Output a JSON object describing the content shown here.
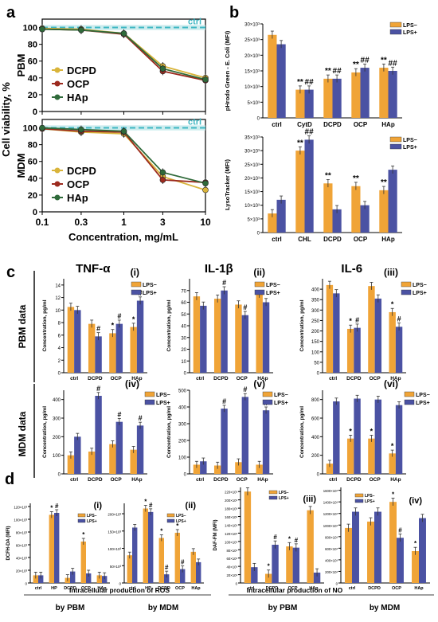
{
  "colors": {
    "lpsminus": "#f0a437",
    "lpsplus": "#4b52a3",
    "dcpd": "#d9b43a",
    "ocp": "#9c2a1e",
    "hap": "#2f6a3a",
    "ctrl": "#3fb7c3"
  },
  "panel_labels": {
    "a": "a",
    "b": "b",
    "c": "c",
    "d": "d"
  },
  "chart_data": [
    {
      "id": "a_pbm",
      "type": "line",
      "row_label": "PBM",
      "ctrl_label": "ctrl",
      "ylabel": "Cell viability, %",
      "x": [
        0.1,
        0.3,
        1,
        3,
        10
      ],
      "xscale": "log",
      "ylim": [
        0,
        110
      ],
      "yticks": [
        0,
        20,
        40,
        60,
        80,
        100
      ],
      "series": [
        {
          "name": "DCPD",
          "values": [
            99,
            98,
            93,
            54,
            40
          ]
        },
        {
          "name": "OCP",
          "values": [
            98,
            97,
            92,
            48,
            37
          ]
        },
        {
          "name": "HAp",
          "values": [
            98,
            97,
            93,
            51,
            38
          ]
        }
      ],
      "legend": [
        "DCPD",
        "OCP",
        "HAp"
      ]
    },
    {
      "id": "a_mdm",
      "type": "line",
      "row_label": "MDM",
      "ctrl_label": "ctrl",
      "xlabel": "Concentration, mg/mL",
      "x": [
        0.1,
        0.3,
        1,
        3,
        10
      ],
      "xscale": "log",
      "ylim": [
        0,
        110
      ],
      "yticks": [
        0,
        20,
        40,
        60,
        80,
        100
      ],
      "xtick_labels": [
        "0.1",
        "0.3",
        "1",
        "3",
        "10"
      ],
      "series": [
        {
          "name": "DCPD",
          "values": [
            99,
            95,
            93,
            42,
            26
          ]
        },
        {
          "name": "OCP",
          "values": [
            99,
            96,
            95,
            38,
            35
          ]
        },
        {
          "name": "HAp",
          "values": [
            100,
            98,
            96,
            47,
            34
          ]
        }
      ],
      "legend": [
        "DCPD",
        "OCP",
        "HAp"
      ]
    },
    {
      "id": "b_top",
      "type": "bar",
      "ylabel": "pHrodo Green - E. Coli (MFI)",
      "categories": [
        "ctrl",
        "CytD",
        "DCPD",
        "OCP",
        "HAp"
      ],
      "ylim": [
        0,
        30000
      ],
      "yticks": [
        "0",
        "5×10³",
        "10×10³",
        "15×10³",
        "20×10³",
        "25×10³",
        "30×10³"
      ],
      "series": [
        {
          "name": "LPS−",
          "values": [
            26500,
            9000,
            12500,
            14500,
            16000
          ]
        },
        {
          "name": "LPS+",
          "values": [
            23500,
            9000,
            12500,
            16000,
            15000
          ]
        }
      ],
      "annotations": [
        [
          "",
          "",
          ""
        ],
        [
          "**",
          "##"
        ],
        [
          "**",
          "##"
        ],
        [
          "**",
          "##"
        ],
        [
          "**",
          "##"
        ]
      ]
    },
    {
      "id": "b_bot",
      "type": "bar",
      "ylabel": "LysoTracker (MFI)",
      "categories": [
        "ctrl",
        "CHL",
        "DCPD",
        "OCP",
        "HAp"
      ],
      "ylim": [
        0,
        35000
      ],
      "yticks": [
        "0",
        "5×10³",
        "10×10³",
        "15×10³",
        "20×10³",
        "25×10³",
        "30×10³",
        "35×10³"
      ],
      "series": [
        {
          "name": "LPS−",
          "values": [
            7000,
            30000,
            18000,
            17000,
            15500
          ]
        },
        {
          "name": "LPS+",
          "values": [
            12000,
            34000,
            8500,
            10000,
            23000
          ]
        }
      ],
      "annotations": [
        [
          "",
          ""
        ],
        [
          "**",
          "##"
        ],
        [
          "**",
          ""
        ],
        [
          "**",
          ""
        ],
        [
          "**",
          ""
        ]
      ]
    },
    {
      "id": "c_i",
      "type": "bar",
      "title": "TNF-α",
      "roman": "(i)",
      "ylabel": "Concentration, pg/ml",
      "row_label": "PBM data",
      "categories": [
        "ctrl",
        "DCPD",
        "OCP",
        "HAp"
      ],
      "ylim": [
        0,
        15
      ],
      "yticks": [
        "0",
        "2",
        "4",
        "6",
        "8",
        "10",
        "12",
        "14"
      ],
      "series": [
        {
          "name": "LPS−",
          "values": [
            10.5,
            7.8,
            6.3,
            7.3
          ]
        },
        {
          "name": "LPS+",
          "values": [
            10,
            5.8,
            7.8,
            11.5
          ]
        }
      ],
      "annotations": [
        [
          "",
          ""
        ],
        [
          "",
          "#"
        ],
        [
          "*",
          "#"
        ],
        [
          "*",
          "#"
        ]
      ]
    },
    {
      "id": "c_ii",
      "type": "bar",
      "title": "IL-1β",
      "roman": "(ii)",
      "ylabel": "Concentration, pg/ml",
      "categories": [
        "ctrl",
        "DCPD",
        "OCP",
        "HAp"
      ],
      "ylim": [
        0,
        80
      ],
      "yticks": [
        "0",
        "10",
        "20",
        "30",
        "40",
        "50",
        "60",
        "70"
      ],
      "series": [
        {
          "name": "LPS−",
          "values": [
            65,
            63,
            58,
            67
          ]
        },
        {
          "name": "LPS+",
          "values": [
            57,
            70,
            49,
            60
          ]
        }
      ],
      "annotations": [
        [
          "",
          ""
        ],
        [
          "",
          "#"
        ],
        [
          "",
          "#"
        ],
        [
          "",
          ""
        ]
      ]
    },
    {
      "id": "c_iii",
      "type": "bar",
      "title": "IL-6",
      "roman": "(iii)",
      "ylabel": "Concentration, pg/ml",
      "categories": [
        "ctrl",
        "DCPD",
        "OCP",
        "HAp"
      ],
      "ylim": [
        0,
        450
      ],
      "yticks": [
        "0",
        "50",
        "100",
        "150",
        "200",
        "250",
        "300",
        "350",
        "400"
      ],
      "series": [
        {
          "name": "LPS−",
          "values": [
            420,
            210,
            415,
            290
          ]
        },
        {
          "name": "LPS+",
          "values": [
            380,
            215,
            355,
            220
          ]
        }
      ],
      "annotations": [
        [
          "",
          ""
        ],
        [
          "*",
          "#"
        ],
        [
          "",
          ""
        ],
        [
          "*",
          "#"
        ]
      ]
    },
    {
      "id": "c_iv",
      "type": "bar",
      "roman": "(iv)",
      "ylabel": "Concentration, pg/ml",
      "row_label": "MDM data",
      "categories": [
        "ctrl",
        "DCPD",
        "OCP",
        "HAp"
      ],
      "ylim": [
        0,
        450
      ],
      "yticks": [
        "0",
        "100",
        "200",
        "300",
        "400"
      ],
      "series": [
        {
          "name": "LPS−",
          "values": [
            100,
            120,
            160,
            130
          ]
        },
        {
          "name": "LPS+",
          "values": [
            200,
            420,
            280,
            260
          ]
        }
      ],
      "annotations": [
        [
          "",
          ""
        ],
        [
          "",
          "#"
        ],
        [
          "",
          "#"
        ],
        [
          "",
          "#"
        ]
      ]
    },
    {
      "id": "c_v",
      "type": "bar",
      "roman": "(v)",
      "ylabel": "Concentration, pg/ml",
      "categories": [
        "ctrl",
        "DCPD",
        "OCP",
        "HAp"
      ],
      "ylim": [
        0,
        500
      ],
      "yticks": [
        "0",
        "100",
        "200",
        "300",
        "400",
        "500"
      ],
      "series": [
        {
          "name": "LPS−",
          "values": [
            55,
            50,
            70,
            55
          ]
        },
        {
          "name": "LPS+",
          "values": [
            75,
            390,
            460,
            380
          ]
        }
      ],
      "annotations": [
        [
          "",
          ""
        ],
        [
          "",
          "#"
        ],
        [
          "",
          "#"
        ],
        [
          "",
          "#"
        ]
      ]
    },
    {
      "id": "c_vi",
      "type": "bar",
      "roman": "(vi)",
      "ylabel": "Concentration, pg/ml",
      "categories": [
        "ctrl",
        "DCPD",
        "OCP",
        "HAp"
      ],
      "ylim": [
        0,
        900
      ],
      "yticks": [
        "0",
        "200",
        "400",
        "600",
        "800"
      ],
      "series": [
        {
          "name": "LPS−",
          "values": [
            110,
            380,
            380,
            220
          ]
        },
        {
          "name": "LPS+",
          "values": [
            780,
            810,
            800,
            740
          ]
        }
      ],
      "annotations": [
        [
          "",
          ""
        ],
        [
          "*",
          ""
        ],
        [
          "*",
          ""
        ],
        [
          "*",
          ""
        ]
      ]
    },
    {
      "id": "d_i",
      "type": "bar",
      "roman": "(i)",
      "ylabel": "DCFH-DA (MFI)",
      "categories": [
        "ctrl",
        "HP",
        "DCPD",
        "OCP",
        "HAp"
      ],
      "ylim": [
        0,
        125000
      ],
      "yticks": [
        "0",
        "20×10³",
        "40×10³",
        "60×10³",
        "80×10³",
        "100×10³",
        "120×10³"
      ],
      "series": [
        {
          "name": "LPS−",
          "values": [
            12000,
            107000,
            8000,
            65000,
            12000
          ]
        },
        {
          "name": "LPS+",
          "values": [
            12000,
            110000,
            18000,
            15000,
            11000
          ]
        }
      ],
      "annotations": [
        [
          "",
          ""
        ],
        [
          "*",
          "#"
        ],
        [
          "",
          ""
        ],
        [
          "*",
          ""
        ],
        [
          "",
          ""
        ]
      ]
    },
    {
      "id": "d_ii",
      "type": "bar",
      "roman": "(ii)",
      "categories": [
        "ctrl",
        "HP",
        "DCPD",
        "OCP",
        "HAp"
      ],
      "ylim": [
        0,
        230000
      ],
      "yticks": [
        "0",
        "50×10³",
        "100×10³",
        "150×10³",
        "200×10³"
      ],
      "series": [
        {
          "name": "LPS−",
          "values": [
            80000,
            215000,
            130000,
            145000,
            90000
          ]
        },
        {
          "name": "LPS+",
          "values": [
            160000,
            205000,
            25000,
            40000,
            60000
          ]
        }
      ],
      "annotations": [
        [
          "",
          ""
        ],
        [
          "*",
          "#"
        ],
        [
          "*",
          "#"
        ],
        [
          "*",
          "#"
        ],
        [
          "",
          ""
        ]
      ]
    },
    {
      "id": "d_iii",
      "type": "bar",
      "roman": "(iii)",
      "ylabel": "DAF-FM (MFI)",
      "categories": [
        "ctrl",
        "DCPD",
        "OCP",
        "HAp"
      ],
      "ylim": [
        0,
        230000
      ],
      "yticks": [
        "0",
        "20×10³",
        "40×10³",
        "60×10³",
        "80×10³",
        "100×10³",
        "120×10³",
        "140×10³",
        "160×10³",
        "180×10³",
        "200×10³",
        "220×10³"
      ],
      "series": [
        {
          "name": "LPS−",
          "values": [
            220000,
            22000,
            88000,
            175000
          ]
        },
        {
          "name": "LPS+",
          "values": [
            38000,
            92000,
            85000,
            25000
          ]
        }
      ],
      "annotations": [
        [
          "",
          ""
        ],
        [
          "*",
          "#"
        ],
        [
          "*",
          "#"
        ],
        [
          "",
          ""
        ]
      ]
    },
    {
      "id": "d_iv",
      "type": "bar",
      "roman": "(iv)",
      "categories": [
        "ctrl",
        "DCPD",
        "OCP",
        "HAp"
      ],
      "ylim": [
        0,
        1650
      ],
      "yticks": [
        "0",
        "200×10³",
        "400×10³",
        "600×10³",
        "800×10³",
        "1000×10³",
        "1200×10³",
        "1400×10³",
        "1600×10³"
      ],
      "series": [
        {
          "name": "LPS−",
          "values": [
            950,
            1060,
            1400,
            550
          ]
        },
        {
          "name": "LPS+",
          "values": [
            1230,
            1230,
            780,
            1120
          ]
        }
      ],
      "annotations": [
        [
          "",
          ""
        ],
        [
          "",
          ""
        ],
        [
          "*",
          "#"
        ],
        [
          "*",
          ""
        ]
      ]
    }
  ],
  "legend_bar": [
    "LPS−",
    "LPS+"
  ],
  "d_captions": {
    "ros": "Intracellular production of ROS",
    "no": "Intracellular production of NO",
    "pbm1": "by PBM",
    "mdm1": "by MDM",
    "pbm2": "by PBM",
    "mdm2": "by MDM"
  }
}
